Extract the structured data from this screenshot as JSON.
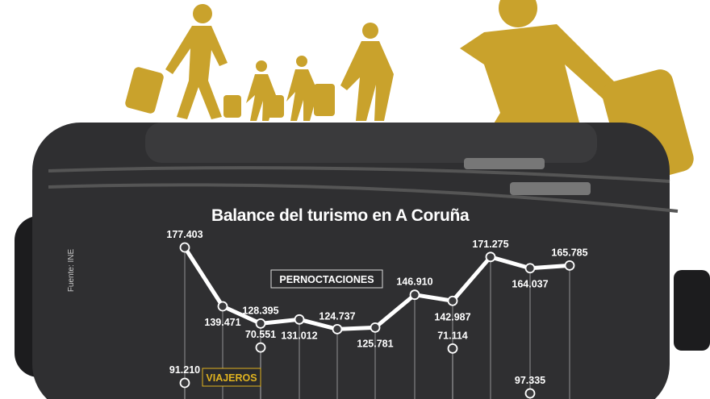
{
  "chart_data": {
    "type": "line",
    "title": "Balance del turismo en A Coruña",
    "source": "Fuente: INE",
    "series": [
      {
        "name": "PERNOCTACIONES",
        "color": "#ffffff",
        "values": [
          177403,
          139471,
          128395,
          131012,
          124737,
          125781,
          146910,
          142987,
          171275,
          164037,
          165785
        ],
        "labels": [
          "177.403",
          "139.471",
          "128.395",
          "131.012",
          "124.737",
          "125.781",
          "146.910",
          "142.987",
          "171.275",
          "164.037",
          "165.785"
        ]
      },
      {
        "name": "VIAJEROS",
        "color": "#e0b320",
        "values": [
          91210,
          null,
          70551,
          null,
          null,
          null,
          null,
          71114,
          null,
          97335,
          null
        ],
        "labels": [
          "91.210",
          "",
          "70.551",
          "",
          "",
          "",
          "",
          "71.114",
          "",
          "97.335",
          ""
        ]
      }
    ],
    "grid": false,
    "legend": "inline-callouts"
  },
  "colors": {
    "gold": "#c9a22c",
    "suitcase": "#2f2f31"
  }
}
